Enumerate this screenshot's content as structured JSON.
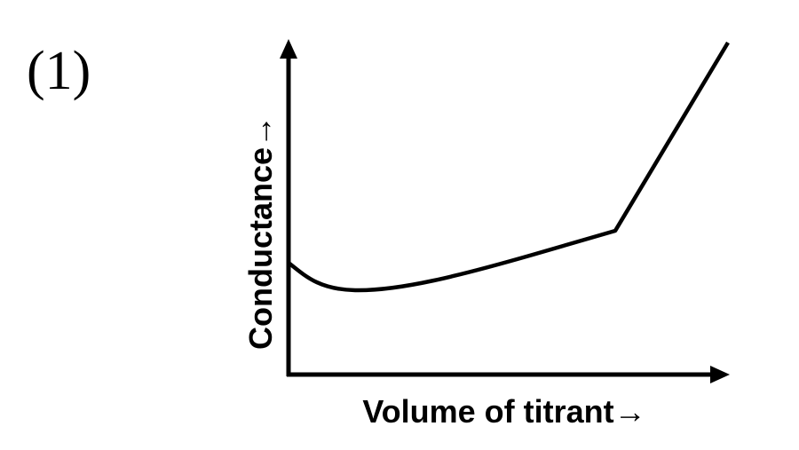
{
  "figure_label": "(1)",
  "y_axis_label": "Conductance→",
  "x_axis_label": "Volume of titrant→"
}
